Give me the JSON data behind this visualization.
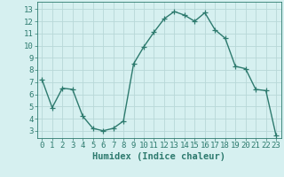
{
  "x": [
    0,
    1,
    2,
    3,
    4,
    5,
    6,
    7,
    8,
    9,
    10,
    11,
    12,
    13,
    14,
    15,
    16,
    17,
    18,
    19,
    20,
    21,
    22,
    23
  ],
  "y": [
    7.2,
    4.9,
    6.5,
    6.4,
    4.2,
    3.2,
    3.0,
    3.2,
    3.8,
    8.5,
    9.9,
    11.1,
    12.2,
    12.8,
    12.5,
    12.0,
    12.7,
    11.3,
    10.6,
    8.3,
    8.1,
    6.4,
    6.3,
    2.6
  ],
  "line_color": "#2d7a6e",
  "marker": "+",
  "marker_size": 4,
  "bg_color": "#d6f0f0",
  "grid_color": "#b8d8d8",
  "xlabel": "Humidex (Indice chaleur)",
  "xlim": [
    -0.5,
    23.5
  ],
  "ylim": [
    2.4,
    13.6
  ],
  "yticks": [
    3,
    4,
    5,
    6,
    7,
    8,
    9,
    10,
    11,
    12,
    13
  ],
  "xticks": [
    0,
    1,
    2,
    3,
    4,
    5,
    6,
    7,
    8,
    9,
    10,
    11,
    12,
    13,
    14,
    15,
    16,
    17,
    18,
    19,
    20,
    21,
    22,
    23
  ],
  "xlabel_fontsize": 7.5,
  "tick_fontsize": 6.5,
  "line_width": 1.0,
  "marker_edge_width": 0.9
}
